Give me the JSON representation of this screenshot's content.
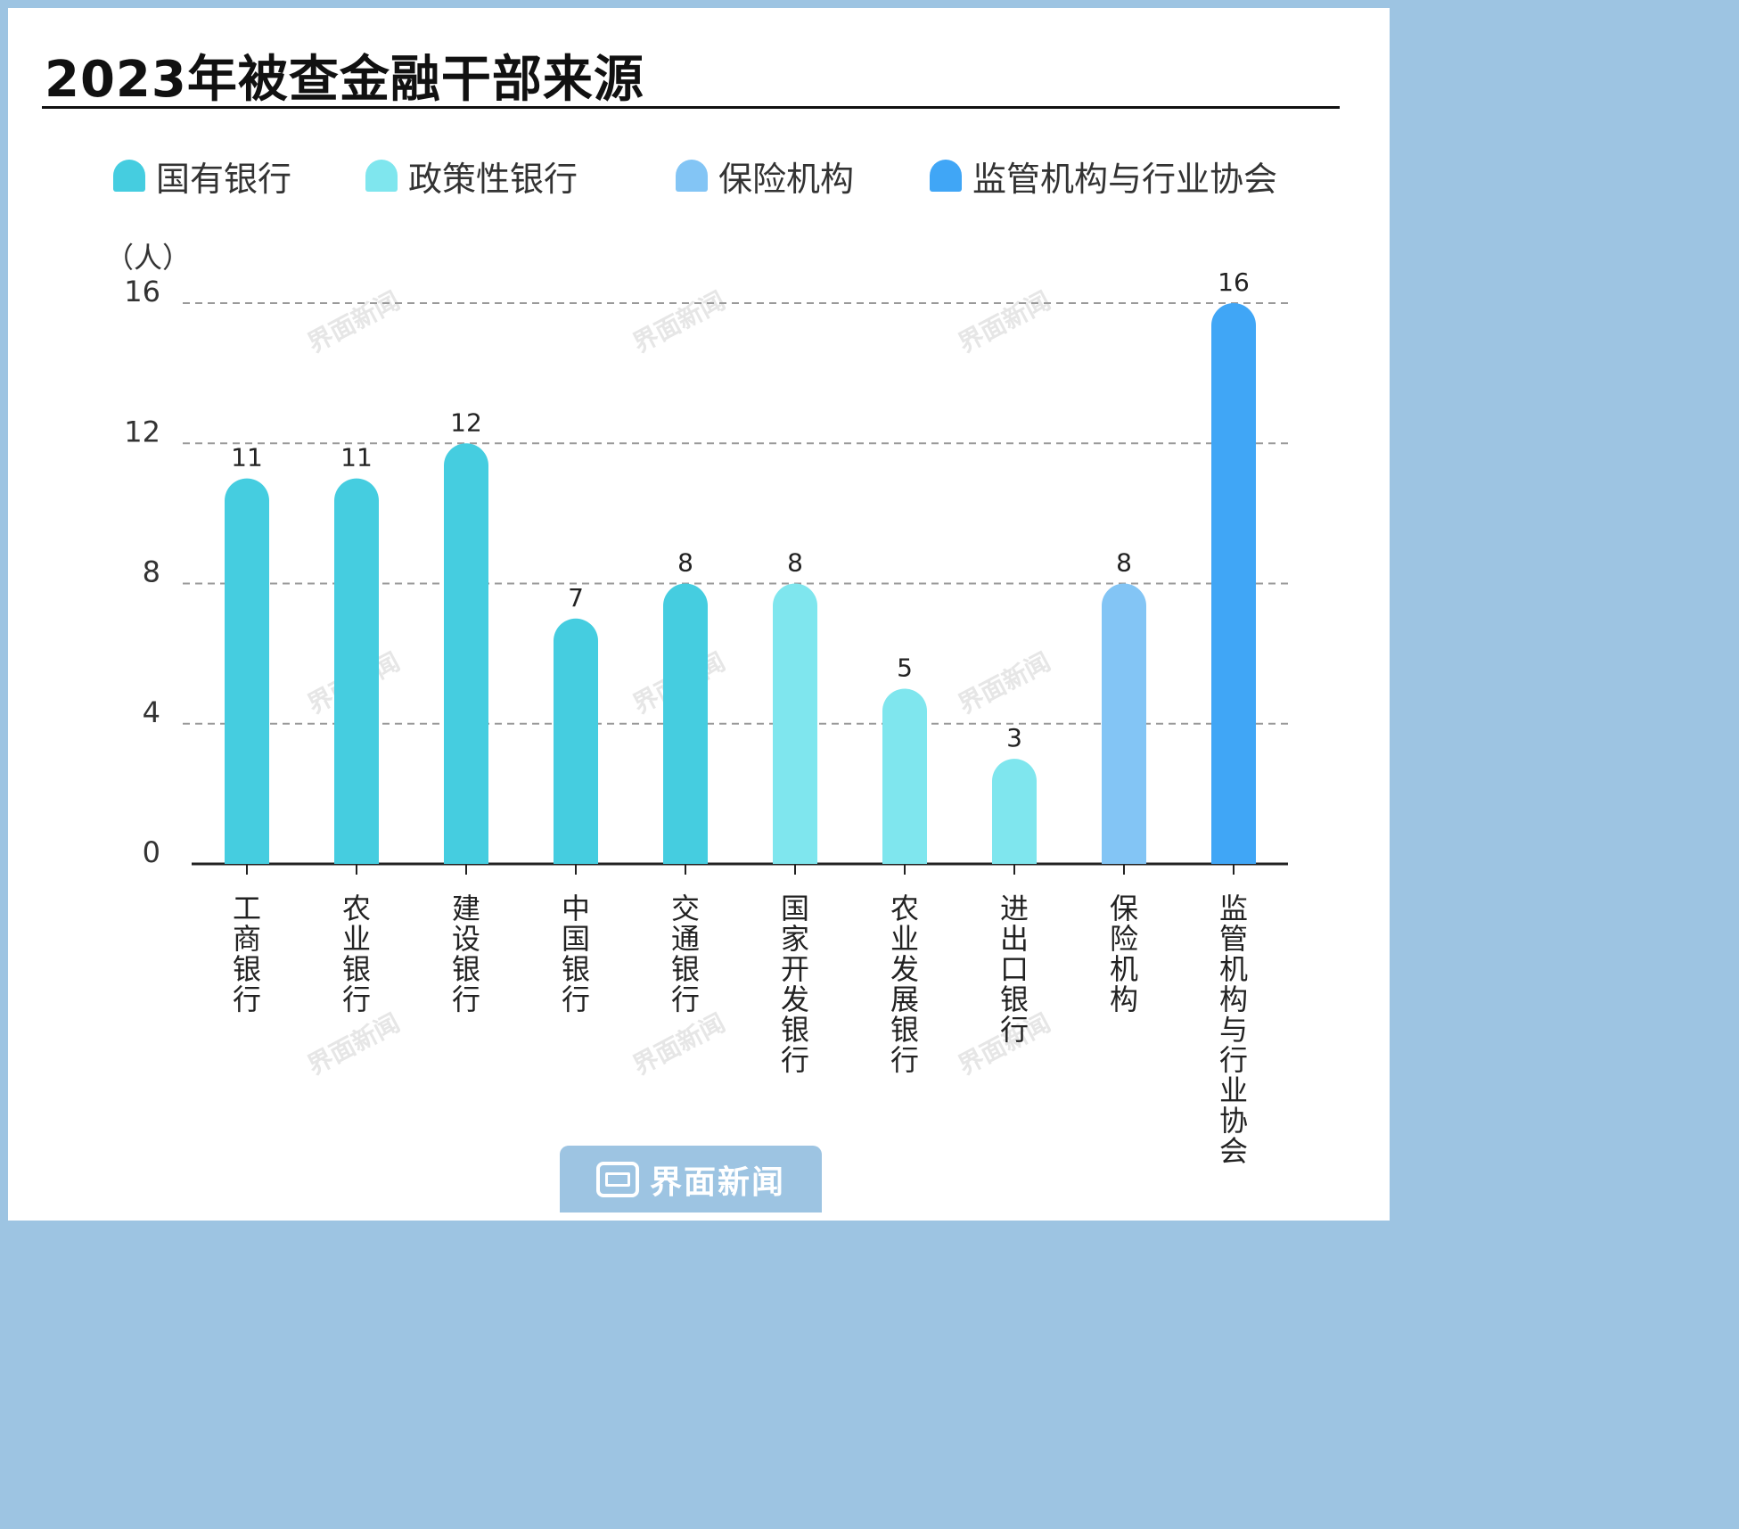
{
  "title": "2023年被查金融干部来源",
  "legend": [
    {
      "label": "国有银行",
      "color": "#45cde0"
    },
    {
      "label": "政策性银行",
      "color": "#7fe6ee"
    },
    {
      "label": "保险机构",
      "color": "#83c5f5"
    },
    {
      "label": "监管机构与行业协会",
      "color": "#40a6f6"
    }
  ],
  "watermark": "界面新闻",
  "footer": {
    "logo_icon": "jiemian-logo-icon",
    "text": "界面新闻"
  },
  "chart_data": {
    "type": "bar",
    "title": "2023年被查金融干部来源",
    "ylabel": "（人）",
    "xlabel": "",
    "ylim": [
      0,
      16
    ],
    "yticks": [
      "0",
      "4",
      "8",
      "12",
      "16"
    ],
    "grid": true,
    "legend_position": "top",
    "categories": [
      "工商银行",
      "农业银行",
      "建设银行",
      "中国银行",
      "交通银行",
      "国家开发银行",
      "农业发展银行",
      "进出口银行",
      "保险机构",
      "监管机构与行业协会"
    ],
    "values": [
      11,
      11,
      12,
      7,
      8,
      8,
      5,
      3,
      8,
      16
    ],
    "groups": [
      "国有银行",
      "国有银行",
      "国有银行",
      "国有银行",
      "国有银行",
      "政策性银行",
      "政策性银行",
      "政策性银行",
      "保险机构",
      "监管机构与行业协会"
    ]
  }
}
